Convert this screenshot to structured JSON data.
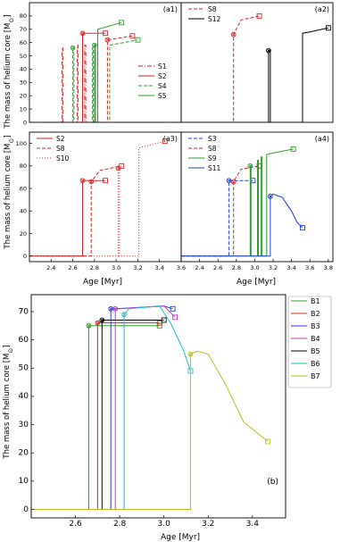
{
  "figure": {
    "ylabel_top": "The mass of helium core [M",
    "ylabel_bottom": "The mass of helium core [M",
    "sun_symbol": "⊙",
    "ylabel_close": "]"
  },
  "chart_data": [
    {
      "id": "a1",
      "panel_label": "(a1)",
      "type": "line",
      "xlim": [
        2.2,
        3.6
      ],
      "ylim": [
        0,
        90
      ],
      "yticks": [
        0,
        10,
        20,
        30,
        40,
        50,
        60,
        70,
        80
      ],
      "grid": false,
      "legend_position": "middle-right",
      "series": [
        {
          "name": "S1",
          "color": "#d62728",
          "dash": "dashdot",
          "marker": "none",
          "x": [
            2.2,
            2.5,
            2.5,
            2.51,
            2.51,
            2.52,
            2.52,
            3.6
          ],
          "y": [
            0,
            0,
            56,
            56,
            0,
            0,
            0,
            0
          ]
        },
        {
          "name": "S2",
          "color": "#d62728",
          "dash": "solid",
          "marker": "square",
          "x": [
            2.2,
            2.69,
            2.69,
            2.9
          ],
          "y": [
            0,
            0,
            67,
            67
          ]
        },
        {
          "name": "S4",
          "color": "#2ca02c",
          "dash": "dashed",
          "marker": "circle",
          "x": [
            2.2,
            2.6,
            2.6,
            2.61,
            2.61,
            2.78,
            2.78,
            2.79,
            2.79,
            2.94,
            2.94,
            3.2
          ],
          "y": [
            0,
            0,
            56,
            56,
            0,
            0,
            56,
            56,
            0,
            0,
            58,
            62
          ]
        },
        {
          "name": "S5",
          "color": "#2ca02c",
          "dash": "solid",
          "marker": "square",
          "x": [
            2.2,
            2.8,
            2.8,
            2.81,
            2.81,
            2.83,
            2.83,
            3.05
          ],
          "y": [
            0,
            0,
            58,
            58,
            0,
            0,
            70,
            75
          ]
        },
        {
          "name": "",
          "color": "#d62728",
          "dash": "dashed",
          "marker": "square",
          "x": [
            2.2,
            2.92,
            2.92,
            3.15
          ],
          "y": [
            0,
            0,
            62,
            65
          ]
        },
        {
          "name": "",
          "color": "#d62728",
          "dash": "dashdot",
          "marker": "none",
          "x": [
            2.2,
            2.64,
            2.64,
            2.65,
            2.65,
            2.71,
            2.71,
            2.72,
            2.72,
            3.6
          ],
          "y": [
            0,
            0,
            58,
            58,
            0,
            0,
            58,
            58,
            0,
            0
          ]
        }
      ]
    },
    {
      "id": "a2",
      "panel_label": "(a2)",
      "type": "line",
      "xlim": [
        2.2,
        3.85
      ],
      "ylim": [
        0,
        90
      ],
      "grid": false,
      "legend_position": "top-left",
      "series": [
        {
          "name": "S8",
          "color": "#d62728",
          "dash": "dashed",
          "marker": "square",
          "x": [
            2.2,
            2.77,
            2.77,
            2.85,
            3.05
          ],
          "y": [
            0,
            0,
            66,
            77,
            80
          ]
        },
        {
          "name": "S12",
          "color": "#000000",
          "dash": "solid",
          "marker": "square",
          "x": [
            2.2,
            3.15,
            3.15,
            3.17,
            3.17,
            3.52,
            3.52,
            3.6,
            3.8
          ],
          "y": [
            0,
            0,
            54,
            54,
            0,
            0,
            67,
            68,
            71
          ]
        }
      ]
    },
    {
      "id": "a3",
      "panel_label": "(a3)",
      "type": "line",
      "xlim": [
        2.2,
        3.6
      ],
      "ylim": [
        -5,
        110
      ],
      "xticks": [
        2.4,
        2.6,
        2.8,
        3.0,
        3.2,
        3.4,
        3.6
      ],
      "yticks": [
        0,
        20,
        40,
        60,
        80,
        100
      ],
      "grid": false,
      "legend_position": "top-left",
      "series": [
        {
          "name": "S2",
          "color": "#d62728",
          "dash": "solid",
          "marker": "square",
          "x": [
            2.2,
            2.69,
            2.69,
            2.9
          ],
          "y": [
            0,
            0,
            67,
            67
          ]
        },
        {
          "name": "S8",
          "color": "#d62728",
          "dash": "dashed",
          "marker": "square",
          "x": [
            2.2,
            2.77,
            2.77,
            2.85,
            3.05
          ],
          "y": [
            0,
            0,
            66,
            76,
            80
          ]
        },
        {
          "name": "S10",
          "color": "#d62728",
          "dash": "dotted",
          "marker": "square",
          "x": [
            2.2,
            3.02,
            3.02,
            3.03,
            3.03,
            3.21,
            3.21,
            3.45
          ],
          "y": [
            0,
            0,
            78,
            78,
            0,
            0,
            96,
            102
          ]
        }
      ]
    },
    {
      "id": "a4",
      "panel_label": "(a4)",
      "type": "line",
      "xlim": [
        2.2,
        3.85
      ],
      "ylim": [
        -5,
        110
      ],
      "xticks": [
        2.4,
        2.6,
        2.8,
        3.0,
        3.2,
        3.4,
        3.6,
        3.8
      ],
      "grid": false,
      "legend_position": "top-left",
      "series": [
        {
          "name": "S3",
          "color": "#1f3fdd",
          "dash": "dashed",
          "marker": "square",
          "x": [
            2.2,
            2.72,
            2.72,
            2.98
          ],
          "y": [
            0,
            0,
            67,
            67
          ]
        },
        {
          "name": "S8",
          "color": "#d62728",
          "dash": "dashed",
          "marker": "square",
          "x": [
            2.2,
            2.77,
            2.77,
            2.85,
            3.05
          ],
          "y": [
            0,
            0,
            66,
            77,
            80
          ]
        },
        {
          "name": "S9",
          "color": "#2ca02c",
          "dash": "solid",
          "marker": "square",
          "x": [
            2.2,
            2.95,
            2.95,
            2.96,
            2.96,
            3.03,
            3.03,
            3.04,
            3.04,
            3.07,
            3.07,
            3.08,
            3.08,
            3.13,
            3.13,
            3.17,
            3.42
          ],
          "y": [
            0,
            0,
            80,
            80,
            0,
            0,
            85,
            85,
            0,
            0,
            88,
            88,
            0,
            0,
            90,
            91,
            95
          ]
        },
        {
          "name": "S11",
          "color": "#1f3fdd",
          "dash": "solid",
          "marker": "square",
          "x": [
            2.2,
            3.17,
            3.17,
            3.2,
            3.3,
            3.4,
            3.46,
            3.52
          ],
          "y": [
            0,
            0,
            53,
            55,
            52,
            40,
            30,
            25
          ]
        }
      ]
    },
    {
      "id": "b",
      "panel_label": "(b)",
      "type": "line",
      "xlim": [
        2.4,
        3.55
      ],
      "ylim": [
        -3,
        76
      ],
      "xticks": [
        2.6,
        2.8,
        3.0,
        3.2,
        3.4
      ],
      "yticks": [
        0,
        10,
        20,
        30,
        40,
        50,
        60,
        70
      ],
      "grid": false,
      "legend_position": "top-right",
      "series": [
        {
          "name": "B1",
          "color": "#2ca02c",
          "dash": "solid",
          "marker": "square",
          "x": [
            2.4,
            2.66,
            2.66,
            2.68,
            2.98
          ],
          "y": [
            0,
            0,
            65,
            65,
            65
          ]
        },
        {
          "name": "B2",
          "color": "#d62728",
          "dash": "solid",
          "marker": "square",
          "x": [
            2.4,
            2.7,
            2.7,
            2.72,
            2.98
          ],
          "y": [
            0,
            0,
            66,
            66,
            66
          ]
        },
        {
          "name": "B3",
          "color": "#1f3fdd",
          "dash": "solid",
          "marker": "square",
          "x": [
            2.4,
            2.76,
            2.76,
            2.78,
            3.0,
            3.04
          ],
          "y": [
            0,
            0,
            71,
            71,
            72,
            71
          ]
        },
        {
          "name": "B4",
          "color": "#cc33cc",
          "dash": "solid",
          "marker": "square",
          "x": [
            2.4,
            2.78,
            2.78,
            2.8,
            3.0,
            3.05
          ],
          "y": [
            0,
            0,
            71,
            71,
            72,
            68
          ]
        },
        {
          "name": "B5",
          "color": "#000000",
          "dash": "solid",
          "marker": "square",
          "x": [
            2.4,
            2.72,
            2.72,
            2.74,
            3.0
          ],
          "y": [
            0,
            0,
            67,
            67,
            67
          ]
        },
        {
          "name": "B6",
          "color": "#17becf",
          "dash": "solid",
          "marker": "square",
          "x": [
            2.4,
            2.82,
            2.82,
            2.84,
            2.98,
            3.03,
            3.09,
            3.12
          ],
          "y": [
            0,
            0,
            69,
            71,
            72,
            66,
            56,
            49
          ]
        },
        {
          "name": "B7",
          "color": "#bcbd22",
          "dash": "solid",
          "marker": "square",
          "x": [
            2.4,
            3.12,
            3.12,
            3.15,
            3.2,
            3.28,
            3.36,
            3.47
          ],
          "y": [
            0,
            0,
            55,
            56,
            55,
            44,
            31,
            24
          ]
        }
      ]
    }
  ],
  "axes_labels": {
    "xlabel_a3": "Age [Myr]",
    "xlabel_a4": "Age [Myr]",
    "xlabel_b": "Age [Myr]"
  }
}
